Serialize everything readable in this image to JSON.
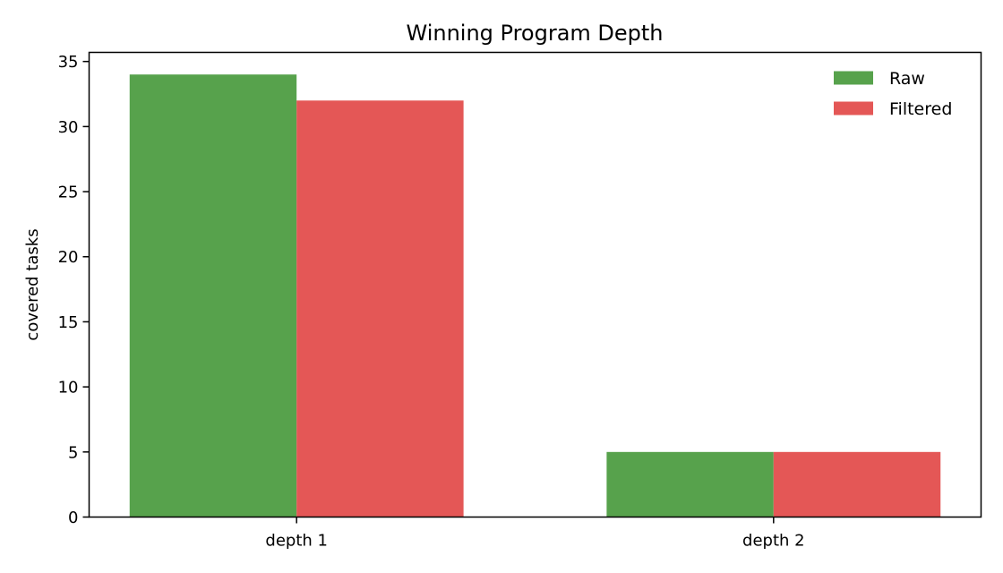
{
  "chart_data": {
    "type": "bar",
    "title": "Winning Program Depth",
    "xlabel": "",
    "ylabel": "covered tasks",
    "categories": [
      "depth 1",
      "depth 2"
    ],
    "series": [
      {
        "name": "Raw",
        "values": [
          34,
          5
        ],
        "color": "#57a24c"
      },
      {
        "name": "Filtered",
        "values": [
          32,
          5
        ],
        "color": "#e45756"
      }
    ],
    "ylim": [
      0,
      35.7
    ],
    "yticks": [
      0,
      5,
      10,
      15,
      20,
      25,
      30,
      35
    ],
    "grid": false,
    "legend": "top-right"
  }
}
